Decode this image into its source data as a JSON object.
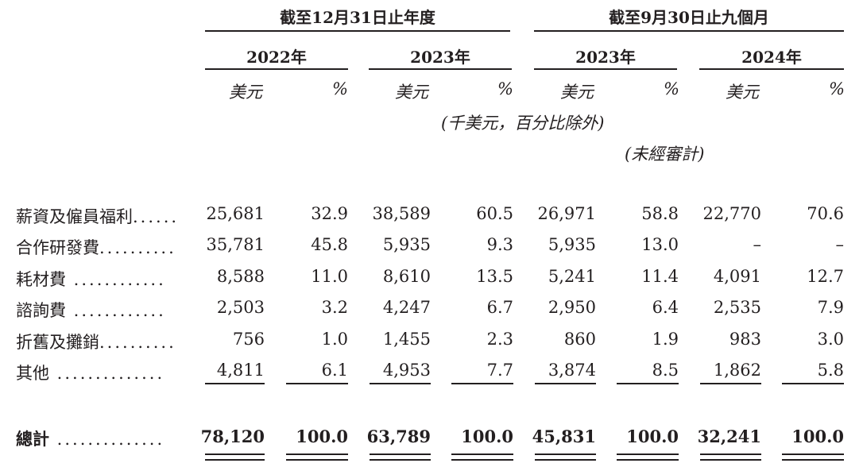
{
  "header": {
    "fy_title": "截至12月31日止年度",
    "nine_title": "截至9月30日止九個月",
    "years": [
      "2022年",
      "2023年",
      "2023年",
      "2024年"
    ],
    "unit_usd": "美元",
    "unit_pct": "%",
    "thousands_note": "(千美元，百分比除外)",
    "unaudited_note": "(未經審計)"
  },
  "rows": [
    {
      "label": "薪資及僱員福利",
      "dots": "......",
      "values": [
        "25,681",
        "32.9",
        "38,589",
        "60.5",
        "26,971",
        "58.8",
        "22,770",
        "70.6"
      ]
    },
    {
      "label": "合作研發費",
      "dots": "..........",
      "values": [
        "35,781",
        "45.8",
        "5,935",
        "9.3",
        "5,935",
        "13.0",
        "–",
        "–"
      ]
    },
    {
      "label": "耗材費",
      "dots": " ............",
      "values": [
        "8,588",
        "11.0",
        "8,610",
        "13.5",
        "5,241",
        "11.4",
        "4,091",
        "12.7"
      ]
    },
    {
      "label": "諮詢費",
      "dots": " ............",
      "values": [
        "2,503",
        "3.2",
        "4,247",
        "6.7",
        "2,950",
        "6.4",
        "2,535",
        "7.9"
      ]
    },
    {
      "label": "折舊及攤銷",
      "dots": "..........",
      "values": [
        "756",
        "1.0",
        "1,455",
        "2.3",
        "860",
        "1.9",
        "983",
        "3.0"
      ]
    },
    {
      "label": "其他",
      "dots": " ..............",
      "values": [
        "4,811",
        "6.1",
        "4,953",
        "7.7",
        "3,874",
        "8.5",
        "1,862",
        "5.8"
      ]
    }
  ],
  "total": {
    "label": "總計",
    "dots": " ..............",
    "values": [
      "78,120",
      "100.0",
      "63,789",
      "100.0",
      "45,831",
      "100.0",
      "32,241",
      "100.0"
    ]
  }
}
